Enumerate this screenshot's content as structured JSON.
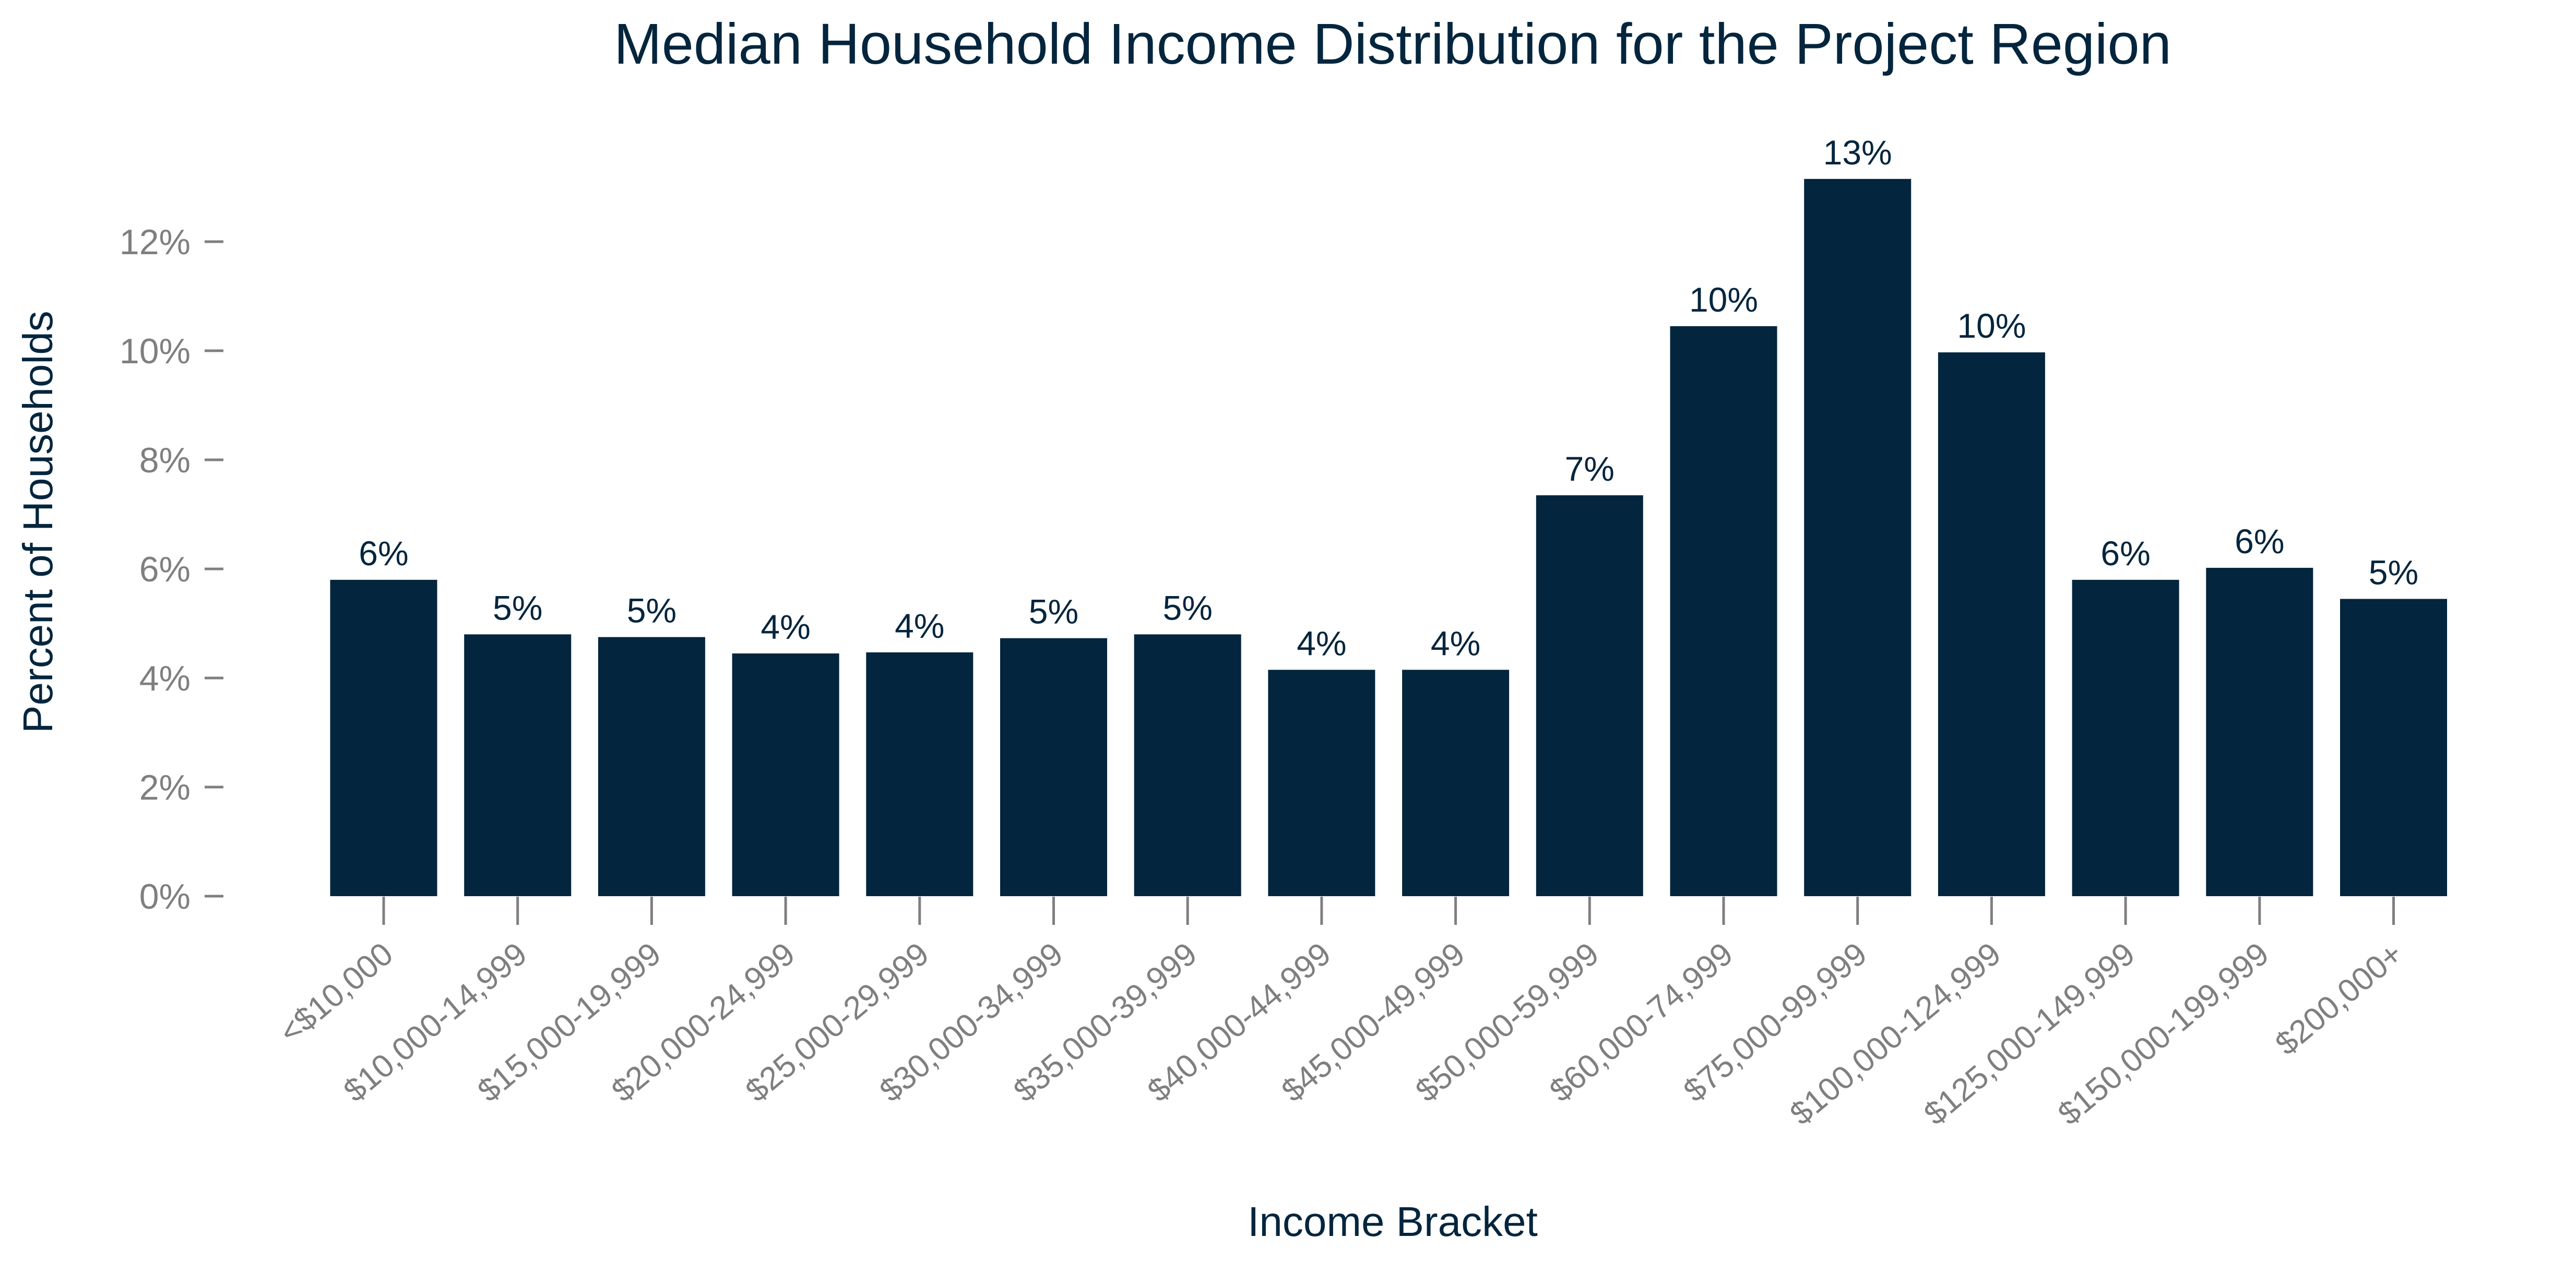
{
  "chart_data": {
    "type": "bar",
    "title": "Median Household Income Distribution for the Project Region",
    "xlabel": "Income Bracket",
    "ylabel": "Percent of Households",
    "categories": [
      "<$10,000",
      "$10,000-14,999",
      "$15,000-19,999",
      "$20,000-24,999",
      "$25,000-29,999",
      "$30,000-34,999",
      "$35,000-39,999",
      "$40,000-44,999",
      "$45,000-49,999",
      "$50,000-59,999",
      "$60,000-74,999",
      "$75,000-99,999",
      "$100,000-124,999",
      "$125,000-149,999",
      "$150,000-199,999",
      "$200,000+"
    ],
    "values": [
      5.8,
      4.8,
      4.75,
      4.45,
      4.47,
      4.73,
      4.8,
      4.15,
      4.15,
      7.35,
      10.45,
      13.15,
      9.97,
      5.8,
      6.02,
      5.45
    ],
    "data_labels": [
      "6%",
      "5%",
      "5%",
      "4%",
      "4%",
      "5%",
      "5%",
      "4%",
      "4%",
      "7%",
      "10%",
      "13%",
      "10%",
      "6%",
      "6%",
      "5%"
    ],
    "y_ticks": [
      0,
      2,
      4,
      6,
      8,
      10,
      12
    ],
    "y_tick_labels": [
      "0%",
      "2%",
      "4%",
      "6%",
      "8%",
      "10%",
      "12%"
    ],
    "ylim": [
      0,
      13.7
    ],
    "grid": false,
    "legend": "none",
    "colors": {
      "bar": "#03253d",
      "title": "#03253d",
      "axis_label": "#03253d",
      "data_label": "#03253d",
      "tick_label": "#7f7f7f",
      "tick_mark": "#7f7f7f"
    }
  }
}
